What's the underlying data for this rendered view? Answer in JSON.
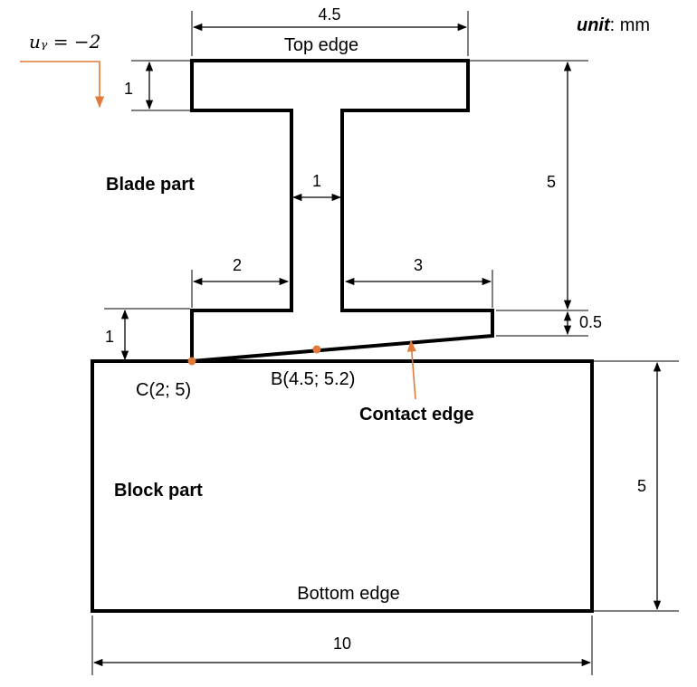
{
  "unit": {
    "label": "unit",
    "value": ": mm"
  },
  "load": {
    "text": "uᵧ = −2",
    "color": "#e07b39"
  },
  "labels": {
    "top_edge": "Top edge",
    "bottom_edge": "Bottom edge",
    "blade_part": "Blade part",
    "block_part": "Block part",
    "contact_edge": "Contact edge",
    "point_c": "C(2; 5)",
    "point_b": "B(4.5; 5.2)"
  },
  "dimensions": {
    "top_width": "4.5",
    "top_thickness": "1",
    "web_width": "1",
    "blade_height": "5",
    "left_foot": "2",
    "right_foot": "3",
    "left_foot_height": "1",
    "right_foot_height": "0.5",
    "block_height": "5",
    "block_width": "10"
  },
  "colors": {
    "accent": "#e07b39",
    "line": "#000000"
  }
}
